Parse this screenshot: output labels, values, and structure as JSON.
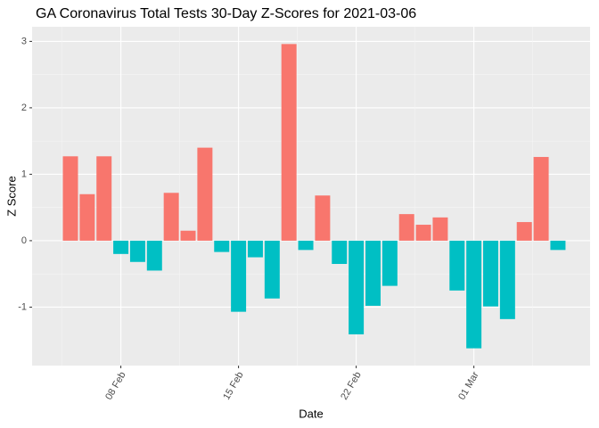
{
  "chart_data": {
    "type": "bar",
    "title": "GA Coronavirus Total Tests 30-Day Z-Scores for 2021-03-06",
    "x_label": "Date",
    "y_label": "Z Score",
    "categories": [
      null,
      null,
      null,
      "08 Feb",
      null,
      null,
      null,
      null,
      null,
      null,
      "15 Feb",
      null,
      null,
      null,
      null,
      null,
      null,
      "22 Feb",
      null,
      null,
      null,
      null,
      null,
      null,
      "01 Mar",
      null,
      null,
      null,
      null,
      null
    ],
    "values": [
      1.27,
      0.7,
      1.27,
      -0.2,
      -0.32,
      -0.45,
      0.72,
      0.15,
      1.4,
      -0.17,
      -1.07,
      -0.25,
      -0.87,
      2.96,
      -0.14,
      0.68,
      -0.35,
      -1.41,
      -0.98,
      -0.68,
      0.4,
      0.24,
      0.35,
      -0.75,
      -1.62,
      -0.99,
      -1.18,
      0.28,
      1.26,
      -0.14
    ],
    "positive_color": "#F8766D",
    "negative_color": "#00BFC4",
    "ylim": [
      -1.88,
      3.22
    ],
    "yticks": [
      -1,
      0,
      1,
      2,
      3
    ],
    "grid": true
  }
}
